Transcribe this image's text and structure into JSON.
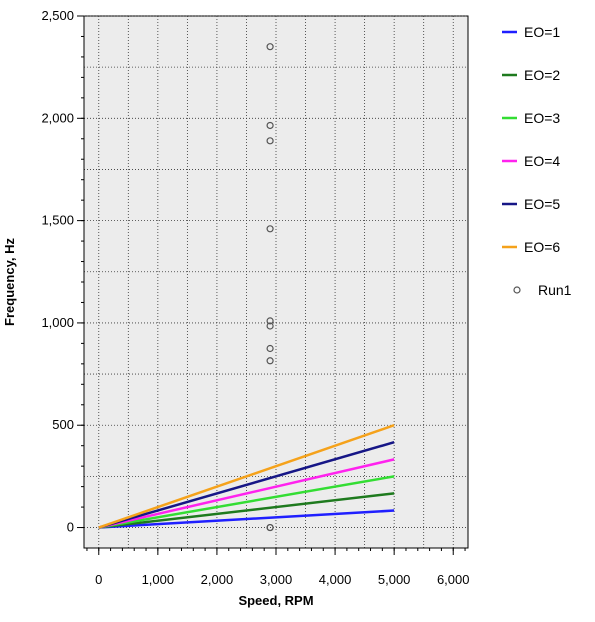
{
  "chart_data": {
    "type": "line",
    "xlabel": "Speed, RPM",
    "ylabel": "Frequency, Hz",
    "xlim": [
      -250,
      6250
    ],
    "ylim": [
      -100,
      2500
    ],
    "x_ticks": [
      0,
      1000,
      2000,
      3000,
      4000,
      5000,
      6000
    ],
    "x_tick_labels": [
      "0",
      "1,000",
      "2,000",
      "3,000",
      "4,000",
      "5,000",
      "6,000"
    ],
    "y_ticks": [
      0,
      500,
      1000,
      1500,
      2000,
      2500
    ],
    "y_tick_labels": [
      "0",
      "500",
      "1,000",
      "1,500",
      "2,000",
      "2,500"
    ],
    "grid": true,
    "legend_position": "right",
    "series": [
      {
        "name": "EO=1",
        "color": "#1f1fff",
        "kind": "line",
        "x": [
          0,
          5000
        ],
        "y": [
          0,
          83
        ]
      },
      {
        "name": "EO=2",
        "color": "#1e7a1e",
        "kind": "line",
        "x": [
          0,
          5000
        ],
        "y": [
          0,
          167
        ]
      },
      {
        "name": "EO=3",
        "color": "#33dd33",
        "kind": "line",
        "x": [
          0,
          5000
        ],
        "y": [
          0,
          250
        ]
      },
      {
        "name": "EO=4",
        "color": "#ff22ee",
        "kind": "line",
        "x": [
          0,
          5000
        ],
        "y": [
          0,
          333
        ]
      },
      {
        "name": "EO=5",
        "color": "#161686",
        "kind": "line",
        "x": [
          0,
          5000
        ],
        "y": [
          0,
          417
        ]
      },
      {
        "name": "EO=6",
        "color": "#f5a21b",
        "kind": "line",
        "x": [
          0,
          5000
        ],
        "y": [
          0,
          500
        ]
      },
      {
        "name": "Run1",
        "color": "#555555",
        "kind": "scatter",
        "x": [
          2900,
          2900,
          2900,
          2900,
          2900,
          2900,
          2900,
          2900,
          2900,
          2900
        ],
        "y": [
          2350,
          1965,
          1890,
          1460,
          1010,
          985,
          875,
          815,
          0,
          0
        ]
      }
    ]
  }
}
